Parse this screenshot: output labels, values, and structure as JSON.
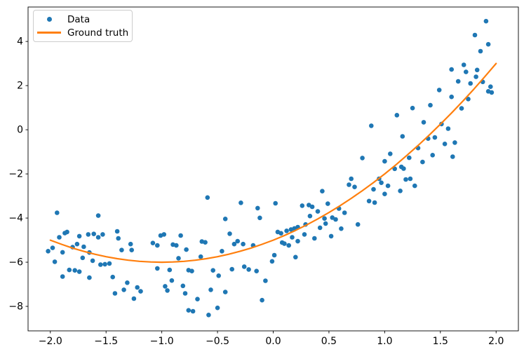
{
  "figure": {
    "background": "#ffffff"
  },
  "colors": {
    "data_blue": "#1f77b4",
    "ground_truth_orange": "#ff7f0e",
    "axis_black": "#000000",
    "legend_border_gray": "#cccccc"
  },
  "legend": {
    "position": "upper-left",
    "items": [
      {
        "label": "Data",
        "marker": "dot",
        "color": "#1f77b4"
      },
      {
        "label": "Ground truth",
        "marker": "line",
        "color": "#ff7f0e"
      }
    ]
  },
  "chart_data": {
    "type": "scatter",
    "title": "",
    "xlabel": "",
    "ylabel": "",
    "grid": false,
    "xlim": [
      -2.2,
      2.2
    ],
    "ylim": [
      -9.11,
      5.56
    ],
    "xticks": {
      "values": [
        -2.0,
        -1.5,
        -1.0,
        -0.5,
        0.0,
        0.5,
        1.0,
        1.5,
        2.0
      ],
      "labels": [
        "−2.0",
        "−1.5",
        "−1.0",
        "−0.5",
        "0.0",
        "0.5",
        "1.0",
        "1.5",
        "2.0"
      ]
    },
    "yticks": {
      "values": [
        4,
        2,
        0,
        -2,
        -4,
        -6,
        -8
      ],
      "labels": [
        "4",
        "2",
        "0",
        "−2",
        "−4",
        "−6",
        "−8"
      ]
    },
    "series": [
      {
        "name": "Data",
        "type": "scatter",
        "color": "#1f77b4",
        "marker_diameter": 6.6,
        "points": [
          [
            -1.94,
            -3.76
          ],
          [
            -1.57,
            -3.89
          ],
          [
            -1.92,
            -4.87
          ],
          [
            -1.87,
            -4.68
          ],
          [
            -1.85,
            -4.63
          ],
          [
            -1.74,
            -4.82
          ],
          [
            -1.66,
            -4.74
          ],
          [
            -1.61,
            -4.72
          ],
          [
            -1.57,
            -4.87
          ],
          [
            -1.53,
            -4.74
          ],
          [
            -1.4,
            -4.6
          ],
          [
            -1.39,
            -4.92
          ],
          [
            -2.02,
            -5.5
          ],
          [
            -1.98,
            -5.35
          ],
          [
            -1.89,
            -5.55
          ],
          [
            -1.8,
            -5.32
          ],
          [
            -1.76,
            -5.18
          ],
          [
            -1.7,
            -5.3
          ],
          [
            -1.65,
            -5.56
          ],
          [
            -1.36,
            -5.45
          ],
          [
            -1.28,
            -5.18
          ],
          [
            -1.27,
            -5.45
          ],
          [
            -1.96,
            -5.98
          ],
          [
            -1.71,
            -5.8
          ],
          [
            -1.62,
            -5.93
          ],
          [
            -1.55,
            -6.11
          ],
          [
            -1.51,
            -6.09
          ],
          [
            -1.47,
            -6.06
          ],
          [
            -1.83,
            -6.35
          ],
          [
            -1.78,
            -6.37
          ],
          [
            -1.74,
            -6.43
          ],
          [
            -1.89,
            -6.65
          ],
          [
            -1.65,
            -6.7
          ],
          [
            -1.44,
            -6.67
          ],
          [
            -1.31,
            -6.93
          ],
          [
            -1.42,
            -7.41
          ],
          [
            -1.34,
            -7.25
          ],
          [
            -1.22,
            -7.14
          ],
          [
            -1.19,
            -7.32
          ],
          [
            -1.25,
            -7.65
          ],
          [
            -0.59,
            -3.07
          ],
          [
            -0.29,
            -3.31
          ],
          [
            -0.14,
            -3.55
          ],
          [
            -0.43,
            -4.04
          ],
          [
            -0.12,
            -3.99
          ],
          [
            -1.01,
            -4.79
          ],
          [
            -0.98,
            -4.74
          ],
          [
            -0.83,
            -4.79
          ],
          [
            -0.39,
            -4.71
          ],
          [
            -1.08,
            -5.13
          ],
          [
            -1.04,
            -5.24
          ],
          [
            -0.9,
            -5.2
          ],
          [
            -0.87,
            -5.24
          ],
          [
            -0.78,
            -5.43
          ],
          [
            -0.64,
            -5.06
          ],
          [
            -0.61,
            -5.1
          ],
          [
            -0.35,
            -5.18
          ],
          [
            -0.32,
            -5.05
          ],
          [
            -0.27,
            -5.18
          ],
          [
            -0.18,
            -5.24
          ],
          [
            -0.46,
            -5.5
          ],
          [
            -0.85,
            -5.82
          ],
          [
            -0.65,
            -5.75
          ],
          [
            -1.04,
            -6.28
          ],
          [
            -0.93,
            -6.35
          ],
          [
            -0.76,
            -6.36
          ],
          [
            -0.73,
            -6.4
          ],
          [
            -0.54,
            -6.37
          ],
          [
            -0.49,
            -6.61
          ],
          [
            -0.91,
            -6.83
          ],
          [
            -0.97,
            -7.09
          ],
          [
            -0.95,
            -7.28
          ],
          [
            -0.81,
            -7.07
          ],
          [
            -0.79,
            -7.41
          ],
          [
            -0.56,
            -7.25
          ],
          [
            -0.43,
            -7.35
          ],
          [
            -0.68,
            -7.67
          ],
          [
            -0.76,
            -8.18
          ],
          [
            -0.72,
            -8.22
          ],
          [
            -0.58,
            -8.39
          ],
          [
            -0.5,
            -8.07
          ],
          [
            -0.37,
            -6.32
          ],
          [
            -0.26,
            -6.2
          ],
          [
            -0.22,
            -6.33
          ],
          [
            -0.15,
            -6.4
          ],
          [
            -0.01,
            -5.96
          ],
          [
            -0.07,
            -6.84
          ],
          [
            -0.1,
            -7.72
          ],
          [
            0.7,
            -2.22
          ],
          [
            0.68,
            -2.49
          ],
          [
            0.73,
            -2.59
          ],
          [
            0.95,
            -2.22
          ],
          [
            0.97,
            -2.4
          ],
          [
            1.03,
            -2.54
          ],
          [
            0.9,
            -2.7
          ],
          [
            1.0,
            -2.91
          ],
          [
            0.44,
            -2.78
          ],
          [
            0.02,
            -3.33
          ],
          [
            0.26,
            -3.44
          ],
          [
            0.32,
            -3.41
          ],
          [
            0.35,
            -3.49
          ],
          [
            0.49,
            -3.35
          ],
          [
            0.59,
            -3.57
          ],
          [
            0.64,
            -3.76
          ],
          [
            0.4,
            -3.7
          ],
          [
            0.33,
            -3.91
          ],
          [
            0.46,
            -4.02
          ],
          [
            0.53,
            -3.98
          ],
          [
            0.56,
            -4.06
          ],
          [
            0.47,
            -4.25
          ],
          [
            0.86,
            -3.23
          ],
          [
            0.91,
            -3.3
          ],
          [
            0.76,
            -4.29
          ],
          [
            0.61,
            -4.48
          ],
          [
            0.42,
            -4.44
          ],
          [
            0.29,
            -4.29
          ],
          [
            0.22,
            -4.41
          ],
          [
            0.12,
            -4.58
          ],
          [
            0.16,
            -4.52
          ],
          [
            0.19,
            -4.47
          ],
          [
            0.04,
            -4.63
          ],
          [
            0.07,
            -4.69
          ],
          [
            0.28,
            -4.74
          ],
          [
            0.17,
            -4.87
          ],
          [
            0.37,
            -4.92
          ],
          [
            0.52,
            -4.82
          ],
          [
            0.22,
            -5.05
          ],
          [
            0.08,
            -5.11
          ],
          [
            0.1,
            -5.16
          ],
          [
            0.14,
            -5.24
          ],
          [
            0.01,
            -5.68
          ],
          [
            0.2,
            -5.77
          ],
          [
            1.09,
            -1.77
          ],
          [
            1.17,
            -1.76
          ],
          [
            1.19,
            -2.25
          ],
          [
            1.23,
            -2.22
          ],
          [
            1.27,
            -2.54
          ],
          [
            1.14,
            -2.77
          ],
          [
            0.88,
            0.18
          ],
          [
            0.8,
            -1.28
          ],
          [
            1.0,
            -1.43
          ],
          [
            1.05,
            -1.09
          ],
          [
            1.91,
            4.92
          ],
          [
            1.81,
            4.29
          ],
          [
            1.93,
            3.87
          ],
          [
            1.86,
            3.56
          ],
          [
            1.6,
            2.73
          ],
          [
            1.71,
            2.94
          ],
          [
            1.73,
            2.62
          ],
          [
            1.83,
            2.71
          ],
          [
            1.82,
            2.4
          ],
          [
            1.66,
            2.19
          ],
          [
            1.77,
            2.1
          ],
          [
            1.88,
            2.17
          ],
          [
            1.95,
            1.95
          ],
          [
            1.96,
            1.69
          ],
          [
            1.93,
            1.74
          ],
          [
            1.49,
            1.8
          ],
          [
            1.41,
            1.11
          ],
          [
            1.25,
            0.98
          ],
          [
            1.11,
            0.66
          ],
          [
            1.6,
            1.49
          ],
          [
            1.75,
            1.39
          ],
          [
            1.69,
            0.97
          ],
          [
            1.35,
            0.34
          ],
          [
            1.51,
            0.26
          ],
          [
            1.57,
            0.05
          ],
          [
            1.16,
            -0.3
          ],
          [
            1.39,
            -0.4
          ],
          [
            1.45,
            -0.35
          ],
          [
            1.54,
            -0.64
          ],
          [
            1.63,
            -0.58
          ],
          [
            1.3,
            -0.83
          ],
          [
            1.22,
            -1.27
          ],
          [
            1.43,
            -1.15
          ],
          [
            1.61,
            -1.22
          ],
          [
            1.34,
            -1.46
          ],
          [
            1.15,
            -1.68
          ]
        ]
      },
      {
        "name": "Ground truth",
        "type": "line",
        "color": "#ff7f0e",
        "linewidth": 2.2,
        "points": [
          [
            -2.0,
            -5.0
          ],
          [
            -1.9,
            -5.19
          ],
          [
            -1.8,
            -5.36
          ],
          [
            -1.7,
            -5.51
          ],
          [
            -1.6,
            -5.64
          ],
          [
            -1.5,
            -5.75
          ],
          [
            -1.4,
            -5.84
          ],
          [
            -1.3,
            -5.91
          ],
          [
            -1.2,
            -5.96
          ],
          [
            -1.1,
            -5.99
          ],
          [
            -1.0,
            -6.0
          ],
          [
            -0.9,
            -5.99
          ],
          [
            -0.8,
            -5.96
          ],
          [
            -0.7,
            -5.91
          ],
          [
            -0.6,
            -5.84
          ],
          [
            -0.5,
            -5.75
          ],
          [
            -0.4,
            -5.64
          ],
          [
            -0.3,
            -5.51
          ],
          [
            -0.2,
            -5.36
          ],
          [
            -0.1,
            -5.19
          ],
          [
            0.0,
            -5.0
          ],
          [
            0.1,
            -4.79
          ],
          [
            0.2,
            -4.56
          ],
          [
            0.3,
            -4.31
          ],
          [
            0.4,
            -4.04
          ],
          [
            0.5,
            -3.75
          ],
          [
            0.6,
            -3.44
          ],
          [
            0.7,
            -3.11
          ],
          [
            0.8,
            -2.76
          ],
          [
            0.9,
            -2.39
          ],
          [
            1.0,
            -2.0
          ],
          [
            1.1,
            -1.59
          ],
          [
            1.2,
            -1.16
          ],
          [
            1.3,
            -0.71
          ],
          [
            1.4,
            -0.24
          ],
          [
            1.5,
            0.25
          ],
          [
            1.6,
            0.76
          ],
          [
            1.7,
            1.29
          ],
          [
            1.8,
            1.84
          ],
          [
            1.9,
            2.41
          ],
          [
            2.0,
            3.0
          ]
        ]
      }
    ]
  }
}
